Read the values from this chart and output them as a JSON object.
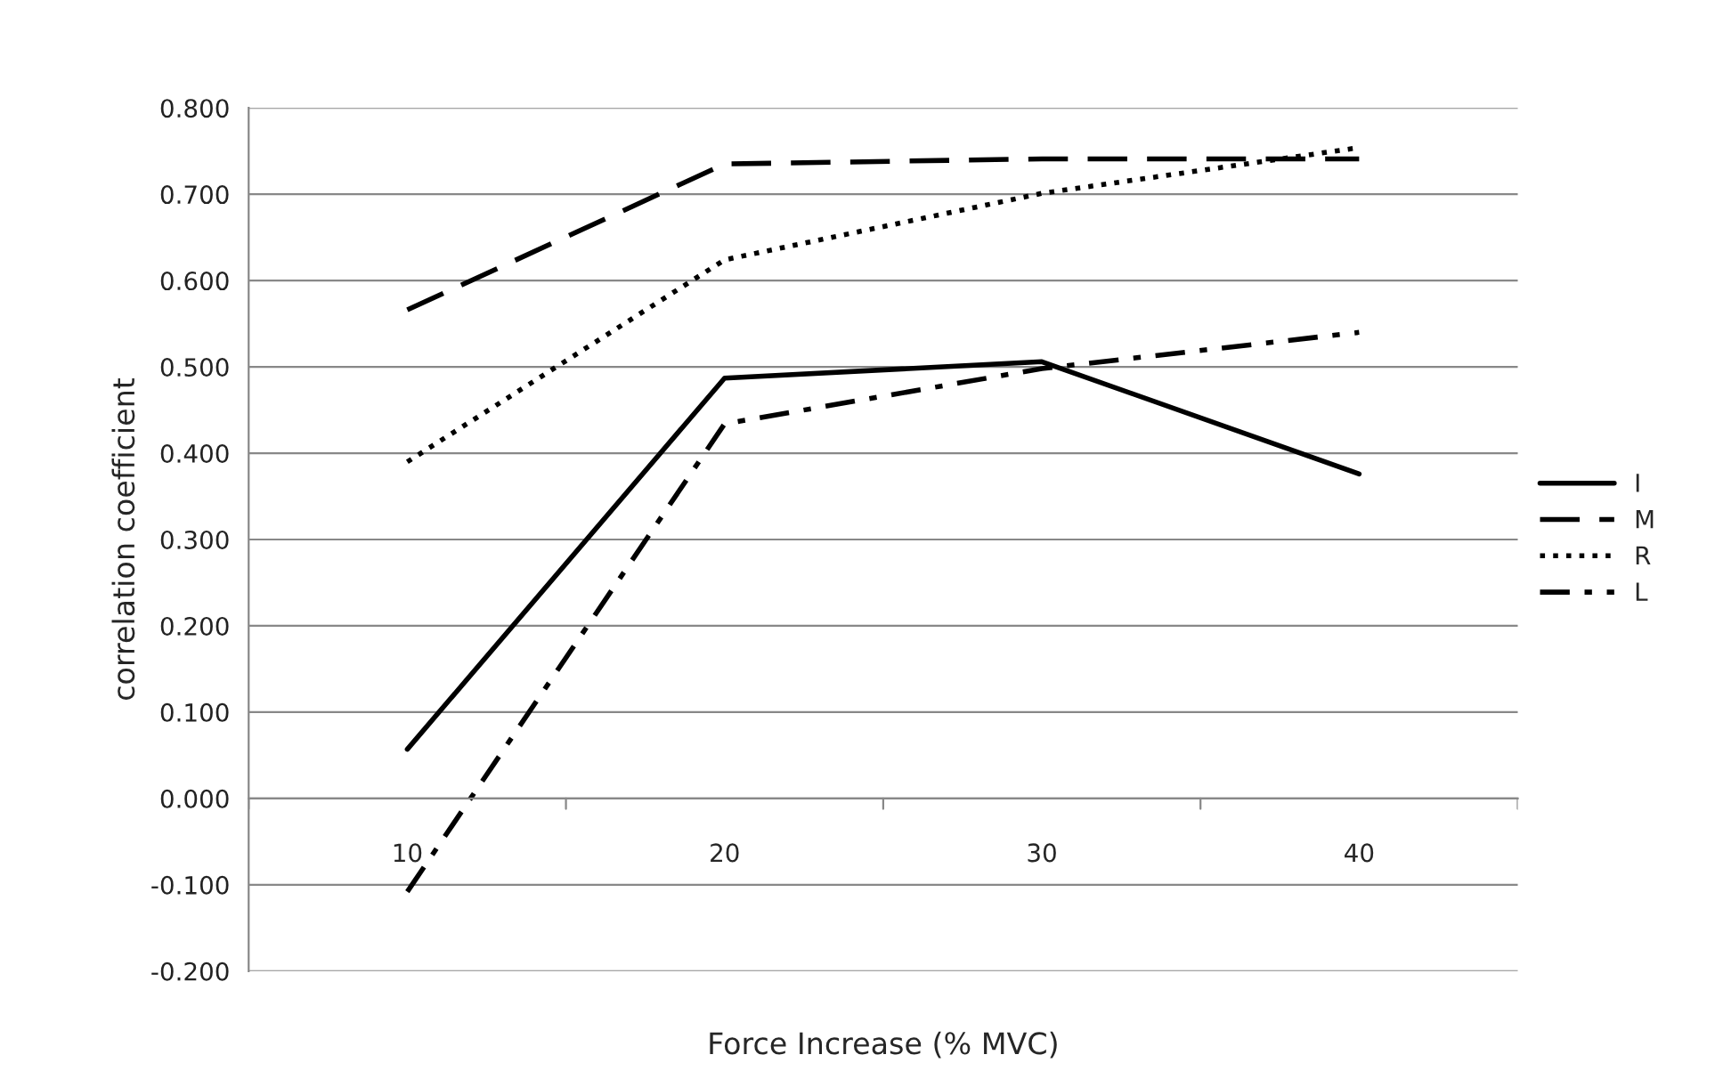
{
  "chart_data": {
    "type": "line",
    "xlabel": "Force Increase (% MVC)",
    "ylabel": "correlation coefficient",
    "categories": [
      "10",
      "20",
      "30",
      "40"
    ],
    "series": [
      {
        "name": "I",
        "color": "#000000",
        "line_style": "solid",
        "values": [
          0.057,
          0.487,
          0.506,
          0.376
        ]
      },
      {
        "name": "M",
        "color": "#000000",
        "line_style": "dashed",
        "values": [
          0.566,
          0.735,
          0.741,
          0.741
        ]
      },
      {
        "name": "R",
        "color": "#000000",
        "line_style": "dotted",
        "values": [
          0.39,
          0.624,
          0.701,
          0.754
        ]
      },
      {
        "name": "L",
        "color": "#000000",
        "line_style": "dashdot",
        "values": [
          -0.108,
          0.434,
          0.498,
          0.54
        ]
      }
    ],
    "ylim": [
      -0.2,
      0.8
    ],
    "yticks": [
      {
        "value": -0.2,
        "label": "-0.200"
      },
      {
        "value": -0.1,
        "label": "-0.100"
      },
      {
        "value": 0,
        "label": "0.000"
      },
      {
        "value": 0.1,
        "label": "0.100"
      },
      {
        "value": 0.2,
        "label": "0.200"
      },
      {
        "value": 0.3,
        "label": "0.300"
      },
      {
        "value": 0.4,
        "label": "0.400"
      },
      {
        "value": 0.5,
        "label": "0.500"
      },
      {
        "value": 0.6,
        "label": "0.600"
      },
      {
        "value": 0.7,
        "label": "0.700"
      },
      {
        "value": 0.8,
        "label": "0.800"
      }
    ],
    "grid": "y",
    "legend": "right",
    "marker": "none"
  }
}
